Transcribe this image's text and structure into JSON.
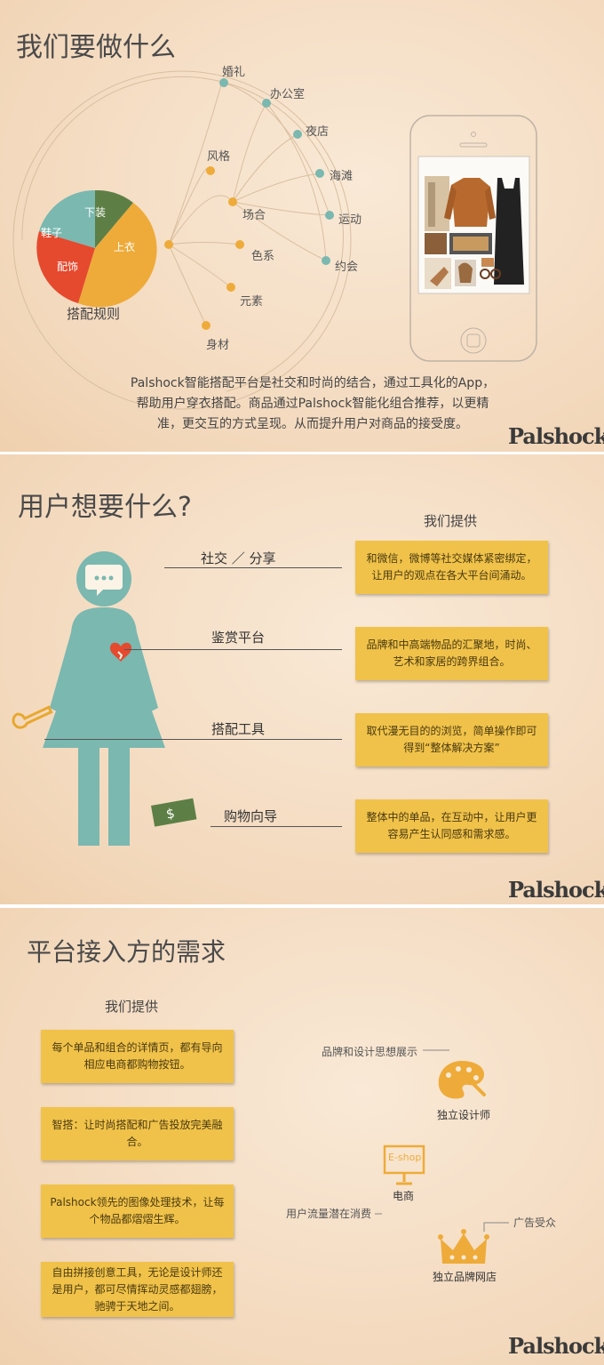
{
  "slide1": {
    "title": "我们要做什么",
    "pie": {
      "caption": "搭配规则",
      "slices": [
        {
          "label": "上衣",
          "color": "#eeab3a"
        },
        {
          "label": "配饰",
          "color": "#e5492e"
        },
        {
          "label": "鞋子",
          "color": "#7ab8b0"
        },
        {
          "label": "下装",
          "color": "#5d7f45"
        }
      ]
    },
    "nodes": [
      "婚礼",
      "办公室",
      "夜店",
      "海滩",
      "运动",
      "约会",
      "风格",
      "场合",
      "色系",
      "元素",
      "身材"
    ],
    "description": "Palshock智能搭配平台是社交和时尚的结合，通过工具化的App，帮助用户穿衣搭配。商品通过Palshock智能化组合推荐，以更精准，更交互的方式呈现。从而提升用户对商品的接受度。",
    "logo": "Palshock"
  },
  "slide2": {
    "title": "用户想要什么?",
    "provide_heading": "我们提供",
    "needs": [
      "社交 ／ 分享",
      "鉴赏平台",
      "搭配工具",
      "购物向导"
    ],
    "offers": [
      "和微信，微博等社交媒体紧密绑定，让用户的观点在各大平台间涌动。",
      "品牌和中高端物品的汇聚地，时尚、艺术和家居的跨界组合。",
      "取代漫无目的的浏览，简单操作即可得到“整体解决方案”",
      "整体中的单品，在互动中，让用户更容易产生认同感和需求感。"
    ],
    "money_symbol": "$",
    "logo": "Palshock"
  },
  "slide3": {
    "title": "平台接入方的需求",
    "provide_heading": "我们提供",
    "offers": [
      "每个单品和组合的详情页，都有导向相应电商都购物按钮。",
      "智搭：让时尚搭配和广告投放完美融合。",
      "Palshock领先的图像处理技术，让每个物品都熠熠生辉。",
      "自由拼接创意工具，无论是设计师还是用户，都可尽情挥动灵感都翅膀，驰骋于天地之间。"
    ],
    "partners": [
      {
        "name": "独立设计师",
        "benefit": "品牌和设计思想展示"
      },
      {
        "name": "电商",
        "benefit": "用户流量潜在消费",
        "screen": "E-shop"
      },
      {
        "name": "独立品牌网店",
        "benefit": "广告受众"
      }
    ],
    "logo": "Palshock"
  }
}
